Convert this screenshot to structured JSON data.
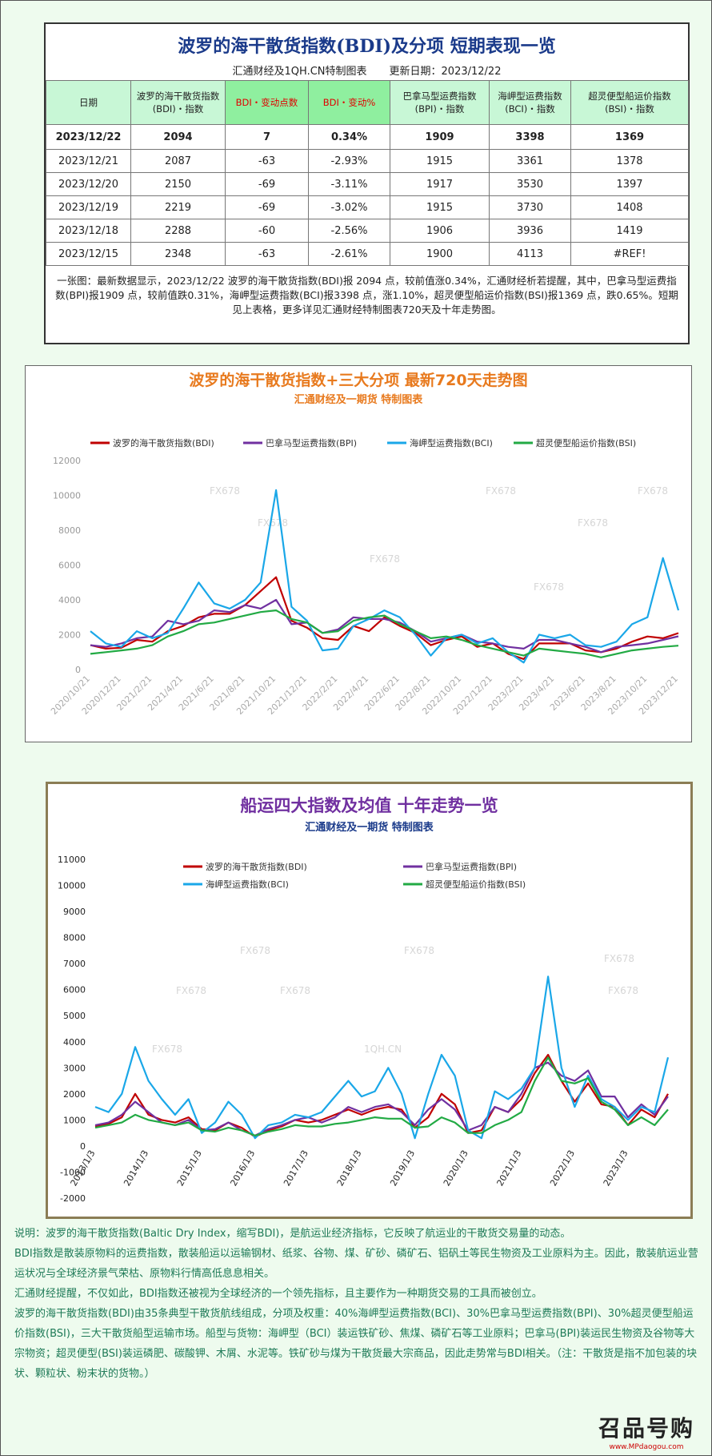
{
  "header": {
    "title": "波罗的海干散货指数(BDI)及分项 短期表现一览",
    "source": "汇通财经及1QH.CN特制图表",
    "updated": "更新日期：2023/12/22"
  },
  "table": {
    "columns": [
      "日期",
      "波罗的海干散货指数(BDI)・指数",
      "BDI・变动点数",
      "BDI・变动%",
      "巴拿马型运费指数(BPI)・指数",
      "海岬型运费指数(BCI)・指数",
      "超灵便型船运价指数(BSI)・指数"
    ],
    "rows": [
      [
        "2023/12/22",
        "2094",
        "7",
        "0.34%",
        "1909",
        "3398",
        "1369"
      ],
      [
        "2023/12/21",
        "2087",
        "-63",
        "-2.93%",
        "1915",
        "3361",
        "1378"
      ],
      [
        "2023/12/20",
        "2150",
        "-69",
        "-3.11%",
        "1917",
        "3530",
        "1397"
      ],
      [
        "2023/12/19",
        "2219",
        "-69",
        "-3.02%",
        "1915",
        "3730",
        "1408"
      ],
      [
        "2023/12/18",
        "2288",
        "-60",
        "-2.56%",
        "1906",
        "3936",
        "1419"
      ],
      [
        "2023/12/15",
        "2348",
        "-63",
        "-2.61%",
        "1900",
        "4113",
        "#REF!"
      ]
    ]
  },
  "summary": "一张图：最新数据显示，2023/12/22 波罗的海干散货指数(BDI)报 2094 点，较前值涨0.34%，汇通财经析若提醒，其中，巴拿马型运费指数(BPI)报1909 点，较前值跌0.31%，海岬型运费指数(BCI)报3398 点，涨1.10%，超灵便型船运价指数(BSI)报1369 点，跌0.65%。短期见上表格，更多详见汇通财经特制图表720天及十年走势图。",
  "chart_data": [
    {
      "type": "line",
      "title": "波罗的海干散货指数+三大分项 最新720天走势图",
      "subtitle": "汇通财经及一期货 特制图表",
      "categories": [
        "2020/10/21",
        null,
        "2020/12/21",
        null,
        "2021/2/21",
        null,
        "2021/4/21",
        null,
        "2021/6/21",
        null,
        "2021/8/21",
        null,
        "2021/10/21",
        null,
        "2021/12/21",
        null,
        "2022/2/21",
        null,
        "2022/4/21",
        null,
        "2022/6/21",
        null,
        "2022/8/21",
        null,
        "2022/10/21",
        null,
        "2022/12/21",
        null,
        "2023/2/21",
        null,
        "2023/4/21",
        null,
        "2023/6/21",
        null,
        "2023/8/21",
        null,
        "2023/10/21",
        null,
        "2023/12/21"
      ],
      "series": [
        {
          "name": "波罗的海干散货指数(BDI)",
          "color": "#c00000",
          "values": [
            1400,
            1200,
            1250,
            1700,
            1600,
            2200,
            2500,
            3000,
            3200,
            3200,
            3700,
            4500,
            5300,
            2800,
            2400,
            1800,
            1700,
            2500,
            2200,
            3000,
            2500,
            2100,
            1400,
            1700,
            1900,
            1300,
            1500,
            900,
            600,
            1500,
            1500,
            1500,
            1100,
            1000,
            1200,
            1600,
            1900,
            1800,
            2094
          ]
        },
        {
          "name": "巴拿马型运费指数(BPI)",
          "color": "#7030a0",
          "values": [
            1400,
            1300,
            1500,
            1800,
            1900,
            2800,
            2600,
            2800,
            3400,
            3300,
            3700,
            3500,
            4000,
            2600,
            2700,
            2100,
            2300,
            3000,
            2900,
            2900,
            2700,
            2200,
            1600,
            1800,
            2000,
            1600,
            1500,
            1300,
            1200,
            1700,
            1700,
            1500,
            1300,
            1000,
            1300,
            1400,
            1500,
            1700,
            1909
          ]
        },
        {
          "name": "海岬型运费指数(BCI)",
          "color": "#1aa7e8",
          "values": [
            2200,
            1500,
            1300,
            2200,
            1800,
            2100,
            3500,
            5000,
            3800,
            3500,
            4000,
            5000,
            10300,
            3600,
            2800,
            1100,
            1200,
            2500,
            2900,
            3400,
            3000,
            2000,
            800,
            1800,
            2000,
            1500,
            1800,
            1000,
            400,
            2000,
            1800,
            2000,
            1400,
            1300,
            1600,
            2600,
            3000,
            6400,
            3398
          ]
        },
        {
          "name": "超灵便型船运价指数(BSI)",
          "color": "#22aa44",
          "values": [
            900,
            1000,
            1100,
            1200,
            1400,
            1900,
            2200,
            2600,
            2700,
            2900,
            3100,
            3300,
            3400,
            2900,
            2700,
            2100,
            2200,
            2800,
            3000,
            3100,
            2600,
            2200,
            1800,
            1900,
            1700,
            1400,
            1200,
            1000,
            800,
            1200,
            1100,
            1000,
            900,
            700,
            900,
            1100,
            1200,
            1300,
            1369
          ]
        }
      ],
      "ylim": [
        0,
        12000
      ],
      "yticks": [
        0,
        2000,
        4000,
        6000,
        8000,
        10000,
        12000
      ],
      "grid": false,
      "watermarks": [
        "FX678",
        "FX678",
        "FX678",
        "FX678",
        "FX678",
        "FX678",
        "FX678"
      ]
    },
    {
      "type": "line",
      "title": "船运四大指数及均值 十年走势一览",
      "subtitle": "汇通财经及一期货 特制图表",
      "categories": [
        "2013/1/3",
        null,
        null,
        null,
        "2014/1/3",
        null,
        null,
        null,
        "2015/1/3",
        null,
        null,
        null,
        "2016/1/3",
        null,
        null,
        null,
        "2017/1/3",
        null,
        null,
        null,
        "2018/1/3",
        null,
        null,
        null,
        "2019/1/3",
        null,
        null,
        null,
        "2020/1/3",
        null,
        null,
        null,
        "2021/1/3",
        null,
        null,
        null,
        "2022/1/3",
        null,
        null,
        null,
        "2023/1/3",
        null,
        null,
        null
      ],
      "series": [
        {
          "name": "波罗的海干散货指数(BDI)",
          "color": "#c00000",
          "values": [
            750,
            850,
            1100,
            2000,
            1200,
            1000,
            900,
            1100,
            650,
            600,
            900,
            700,
            350,
            600,
            750,
            1000,
            900,
            1000,
            1200,
            1400,
            1200,
            1400,
            1500,
            1400,
            700,
            1100,
            2000,
            1600,
            500,
            600,
            1500,
            1300,
            1800,
            2800,
            3500,
            2500,
            1700,
            2400,
            1600,
            1500,
            800,
            1400,
            1100,
            2000
          ]
        },
        {
          "name": "巴拿马型运费指数(BPI)",
          "color": "#7030a0",
          "values": [
            800,
            900,
            1200,
            1700,
            1300,
            900,
            800,
            1000,
            600,
            650,
            900,
            600,
            400,
            650,
            800,
            1000,
            1100,
            900,
            1100,
            1500,
            1300,
            1500,
            1600,
            1300,
            800,
            1400,
            1800,
            1400,
            600,
            800,
            1500,
            1300,
            2000,
            3000,
            3200,
            2700,
            2500,
            2900,
            1900,
            1900,
            1100,
            1600,
            1200,
            1900
          ]
        },
        {
          "name": "海岬型运费指数(BCI)",
          "color": "#1aa7e8",
          "values": [
            1500,
            1300,
            2000,
            3800,
            2500,
            1800,
            1200,
            1800,
            500,
            900,
            1700,
            1200,
            300,
            800,
            900,
            1200,
            1100,
            1300,
            1900,
            2500,
            1900,
            2100,
            3000,
            2000,
            300,
            2000,
            3500,
            2700,
            600,
            300,
            2100,
            1800,
            2200,
            3000,
            6500,
            3000,
            1500,
            2700,
            1800,
            1500,
            1000,
            1500,
            1300,
            3400
          ]
        },
        {
          "name": "超灵便型船运价指数(BSI)",
          "color": "#22aa44",
          "values": [
            700,
            800,
            900,
            1200,
            1000,
            900,
            800,
            900,
            600,
            550,
            700,
            600,
            400,
            550,
            650,
            800,
            750,
            750,
            850,
            900,
            1000,
            1100,
            1050,
            1050,
            700,
            750,
            1100,
            900,
            500,
            500,
            800,
            1000,
            1300,
            2500,
            3400,
            2500,
            2400,
            2600,
            1700,
            1400,
            800,
            1100,
            800,
            1400
          ]
        }
      ],
      "ylim": [
        -2000,
        11000
      ],
      "yticks": [
        -2000,
        -1000,
        0,
        1000,
        2000,
        3000,
        4000,
        5000,
        6000,
        7000,
        8000,
        9000,
        10000,
        11000
      ],
      "grid": false,
      "watermarks": [
        "FX678",
        "FX678",
        "FX678",
        "FX678",
        "FX678",
        "FX678",
        "FX678",
        "1QH.CN"
      ]
    }
  ],
  "notes": [
    "说明：波罗的海干散货指数(Baltic Dry Index，缩写BDI)，是航运业经济指标，它反映了航运业的干散货交易量的动态。",
    "BDI指数是散装原物料的运费指数，散装船运以运输钢材、纸浆、谷物、煤、矿砂、磷矿石、铝矾土等民生物资及工业原料为主。因此，散装航运业营运状况与全球经济景气荣枯、原物料行情高低息息相关。",
    "汇通财经提醒，不仅如此，BDI指数还被视为全球经济的一个领先指标，且主要作为一种期货交易的工具而被创立。",
    "波罗的海干散货指数(BDI)由35条典型干散货航线组成，分项及权重：40%海岬型运费指数(BCI)、30%巴拿马型运费指数(BPI)、30%超灵便型船运价指数(BSI)，三大干散货船型运输市场。船型与货物：海岬型（BCI）装运铁矿砂、焦煤、磷矿石等工业原料；巴拿马(BPI)装运民生物资及谷物等大宗物资；超灵便型(BSI)装运磷肥、碳酸钾、木屑、水泥等。铁矿砂与煤为干散货最大宗商品，因此走势常与BDI相关。（注：干散货是指不加包装的块状、颗粒状、粉末状的货物。）"
  ],
  "logo": {
    "name": "召品号购",
    "url": "www.MPdaogou.com"
  }
}
